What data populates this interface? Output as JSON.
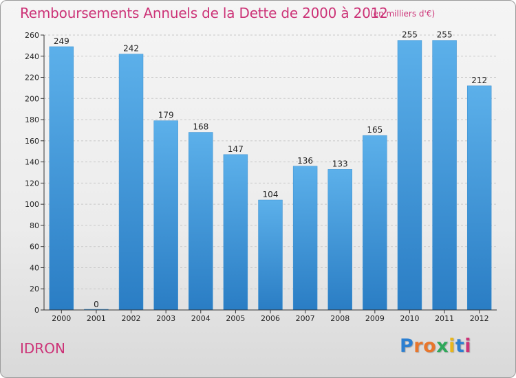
{
  "header": {
    "title": "Remboursements Annuels de la Dette de 2000 à 2012",
    "unit": "(en milliers d'€)"
  },
  "footer": {
    "commune": "IDRON",
    "brand_letters": [
      "P",
      "r",
      "o",
      "x",
      "i",
      "t",
      "i"
    ]
  },
  "colors": {
    "title": "#cc3377",
    "bar": "#4da3e0",
    "logo": [
      "#2b7fd1",
      "#e8762c",
      "#e8762c",
      "#2fa85a",
      "#e8b61c",
      "#2b7fd1",
      "#cc3377"
    ]
  },
  "chart_data": {
    "type": "bar",
    "title": "Remboursements Annuels de la Dette de 2000 à 2012",
    "subtitle": "(en milliers d'€)",
    "categories": [
      "2000",
      "2001",
      "2002",
      "2003",
      "2004",
      "2005",
      "2006",
      "2007",
      "2008",
      "2009",
      "2010",
      "2011",
      "2012"
    ],
    "values": [
      249,
      0,
      242,
      179,
      168,
      147,
      104,
      136,
      133,
      165,
      255,
      255,
      212
    ],
    "ylim": [
      0,
      260
    ],
    "yticks": [
      0,
      20,
      40,
      60,
      80,
      100,
      120,
      140,
      160,
      180,
      200,
      220,
      240,
      260
    ],
    "grid": true,
    "data_labels": true
  }
}
